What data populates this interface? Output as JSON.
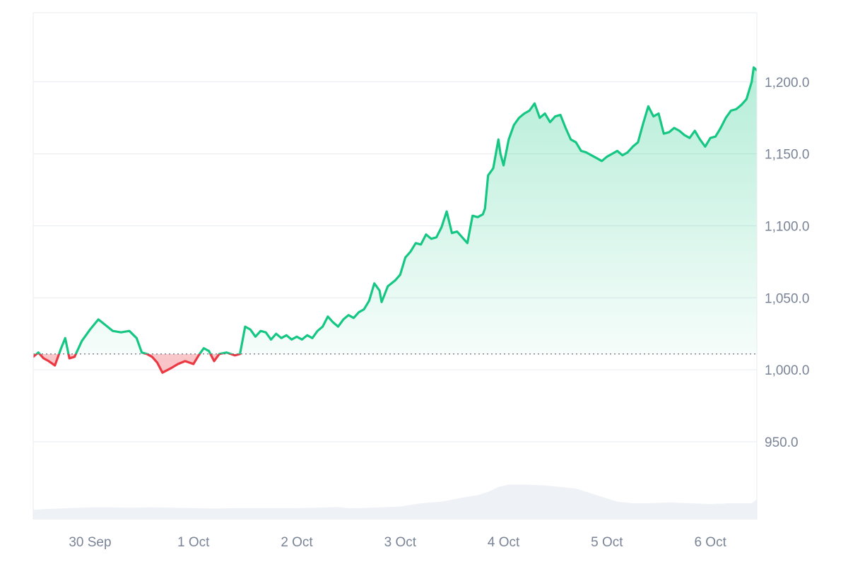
{
  "chart_data": {
    "type": "area",
    "title": "",
    "xlabel": "",
    "ylabel": "",
    "x_range": [
      29.45,
      36.45
    ],
    "ylim": [
      896,
      1248
    ],
    "baseline": 1011,
    "y_ticks": [
      {
        "value": 950,
        "label": "950.0"
      },
      {
        "value": 1000,
        "label": "1,000.0"
      },
      {
        "value": 1050,
        "label": "1,050.0"
      },
      {
        "value": 1100,
        "label": "1,100.0"
      },
      {
        "value": 1150,
        "label": "1,150.0"
      },
      {
        "value": 1200,
        "label": "1,200.0"
      }
    ],
    "x_ticks": [
      {
        "value": 30,
        "label": "30 Sep"
      },
      {
        "value": 31,
        "label": "1 Oct"
      },
      {
        "value": 32,
        "label": "2 Oct"
      },
      {
        "value": 33,
        "label": "3 Oct"
      },
      {
        "value": 34,
        "label": "4 Oct"
      },
      {
        "value": 35,
        "label": "5 Oct"
      },
      {
        "value": 36,
        "label": "6 Oct"
      }
    ],
    "price_series": [
      [
        29.45,
        1009
      ],
      [
        29.5,
        1012
      ],
      [
        29.55,
        1008
      ],
      [
        29.6,
        1006
      ],
      [
        29.66,
        1003
      ],
      [
        29.72,
        1015
      ],
      [
        29.76,
        1022
      ],
      [
        29.8,
        1008
      ],
      [
        29.85,
        1009
      ],
      [
        29.92,
        1020
      ],
      [
        30.0,
        1028
      ],
      [
        30.08,
        1035
      ],
      [
        30.15,
        1031
      ],
      [
        30.22,
        1027
      ],
      [
        30.3,
        1026
      ],
      [
        30.38,
        1027
      ],
      [
        30.45,
        1022
      ],
      [
        30.5,
        1012
      ],
      [
        30.55,
        1011
      ],
      [
        30.6,
        1009
      ],
      [
        30.65,
        1005
      ],
      [
        30.7,
        998
      ],
      [
        30.78,
        1001
      ],
      [
        30.85,
        1004
      ],
      [
        30.92,
        1006
      ],
      [
        31.0,
        1004
      ],
      [
        31.05,
        1010
      ],
      [
        31.1,
        1015
      ],
      [
        31.15,
        1013
      ],
      [
        31.2,
        1006
      ],
      [
        31.25,
        1011
      ],
      [
        31.32,
        1012
      ],
      [
        31.4,
        1010
      ],
      [
        31.45,
        1011
      ],
      [
        31.5,
        1030
      ],
      [
        31.55,
        1028
      ],
      [
        31.6,
        1023
      ],
      [
        31.65,
        1027
      ],
      [
        31.7,
        1026
      ],
      [
        31.75,
        1021
      ],
      [
        31.8,
        1025
      ],
      [
        31.85,
        1022
      ],
      [
        31.9,
        1024
      ],
      [
        31.95,
        1021
      ],
      [
        32.0,
        1023
      ],
      [
        32.05,
        1021
      ],
      [
        32.1,
        1024
      ],
      [
        32.15,
        1022
      ],
      [
        32.2,
        1027
      ],
      [
        32.25,
        1030
      ],
      [
        32.3,
        1037
      ],
      [
        32.35,
        1033
      ],
      [
        32.4,
        1030
      ],
      [
        32.45,
        1035
      ],
      [
        32.5,
        1038
      ],
      [
        32.55,
        1036
      ],
      [
        32.6,
        1040
      ],
      [
        32.65,
        1042
      ],
      [
        32.7,
        1048
      ],
      [
        32.75,
        1060
      ],
      [
        32.8,
        1055
      ],
      [
        32.82,
        1047
      ],
      [
        32.88,
        1058
      ],
      [
        32.95,
        1062
      ],
      [
        33.0,
        1066
      ],
      [
        33.05,
        1078
      ],
      [
        33.1,
        1082
      ],
      [
        33.15,
        1088
      ],
      [
        33.2,
        1087
      ],
      [
        33.25,
        1094
      ],
      [
        33.3,
        1091
      ],
      [
        33.35,
        1092
      ],
      [
        33.4,
        1099
      ],
      [
        33.45,
        1110
      ],
      [
        33.5,
        1095
      ],
      [
        33.55,
        1096
      ],
      [
        33.6,
        1092
      ],
      [
        33.65,
        1088
      ],
      [
        33.7,
        1107
      ],
      [
        33.75,
        1106
      ],
      [
        33.8,
        1108
      ],
      [
        33.82,
        1112
      ],
      [
        33.85,
        1135
      ],
      [
        33.9,
        1140
      ],
      [
        33.95,
        1160
      ],
      [
        33.97,
        1150
      ],
      [
        34.0,
        1142
      ],
      [
        34.05,
        1160
      ],
      [
        34.1,
        1170
      ],
      [
        34.15,
        1175
      ],
      [
        34.2,
        1178
      ],
      [
        34.25,
        1180
      ],
      [
        34.3,
        1185
      ],
      [
        34.35,
        1175
      ],
      [
        34.4,
        1178
      ],
      [
        34.45,
        1172
      ],
      [
        34.5,
        1176
      ],
      [
        34.55,
        1177
      ],
      [
        34.6,
        1168
      ],
      [
        34.65,
        1160
      ],
      [
        34.7,
        1158
      ],
      [
        34.75,
        1152
      ],
      [
        34.8,
        1151
      ],
      [
        34.85,
        1149
      ],
      [
        34.9,
        1147
      ],
      [
        34.95,
        1145
      ],
      [
        35.0,
        1148
      ],
      [
        35.05,
        1150
      ],
      [
        35.1,
        1152
      ],
      [
        35.15,
        1149
      ],
      [
        35.2,
        1151
      ],
      [
        35.25,
        1155
      ],
      [
        35.3,
        1158
      ],
      [
        35.35,
        1171
      ],
      [
        35.4,
        1183
      ],
      [
        35.45,
        1176
      ],
      [
        35.5,
        1178
      ],
      [
        35.55,
        1164
      ],
      [
        35.6,
        1165
      ],
      [
        35.65,
        1168
      ],
      [
        35.7,
        1166
      ],
      [
        35.75,
        1163
      ],
      [
        35.8,
        1161
      ],
      [
        35.85,
        1166
      ],
      [
        35.9,
        1160
      ],
      [
        35.95,
        1155
      ],
      [
        36.0,
        1161
      ],
      [
        36.05,
        1162
      ],
      [
        36.1,
        1168
      ],
      [
        36.15,
        1175
      ],
      [
        36.2,
        1180
      ],
      [
        36.25,
        1181
      ],
      [
        36.3,
        1184
      ],
      [
        36.35,
        1188
      ],
      [
        36.4,
        1200
      ],
      [
        36.42,
        1210
      ],
      [
        36.45,
        1208
      ]
    ],
    "volume_series": [
      [
        29.45,
        0.12
      ],
      [
        29.6,
        0.13
      ],
      [
        29.8,
        0.14
      ],
      [
        30.0,
        0.15
      ],
      [
        30.2,
        0.15
      ],
      [
        30.4,
        0.145
      ],
      [
        30.6,
        0.15
      ],
      [
        30.8,
        0.145
      ],
      [
        31.0,
        0.14
      ],
      [
        31.2,
        0.135
      ],
      [
        31.4,
        0.14
      ],
      [
        31.6,
        0.14
      ],
      [
        31.8,
        0.14
      ],
      [
        32.0,
        0.14
      ],
      [
        32.2,
        0.145
      ],
      [
        32.4,
        0.155
      ],
      [
        32.5,
        0.14
      ],
      [
        32.6,
        0.14
      ],
      [
        32.8,
        0.15
      ],
      [
        33.0,
        0.16
      ],
      [
        33.2,
        0.2
      ],
      [
        33.4,
        0.22
      ],
      [
        33.6,
        0.27
      ],
      [
        33.75,
        0.3
      ],
      [
        33.85,
        0.34
      ],
      [
        33.95,
        0.4
      ],
      [
        34.05,
        0.43
      ],
      [
        34.2,
        0.43
      ],
      [
        34.4,
        0.42
      ],
      [
        34.55,
        0.4
      ],
      [
        34.7,
        0.38
      ],
      [
        34.8,
        0.34
      ],
      [
        34.9,
        0.3
      ],
      [
        35.0,
        0.26
      ],
      [
        35.1,
        0.22
      ],
      [
        35.25,
        0.2
      ],
      [
        35.4,
        0.2
      ],
      [
        35.6,
        0.21
      ],
      [
        35.8,
        0.2
      ],
      [
        36.0,
        0.19
      ],
      [
        36.2,
        0.2
      ],
      [
        36.4,
        0.2
      ],
      [
        36.45,
        0.25
      ]
    ],
    "colors": {
      "up_line": "#16c784",
      "down_line": "#ea3943",
      "up_fill": "#16c784",
      "down_fill": "#ea3943",
      "volume": "#eef1f5",
      "grid": "#e8ebef",
      "axis_text": "#7a8496",
      "baseline": "#6b7280"
    },
    "grid": true,
    "y_axis_position": "right"
  }
}
